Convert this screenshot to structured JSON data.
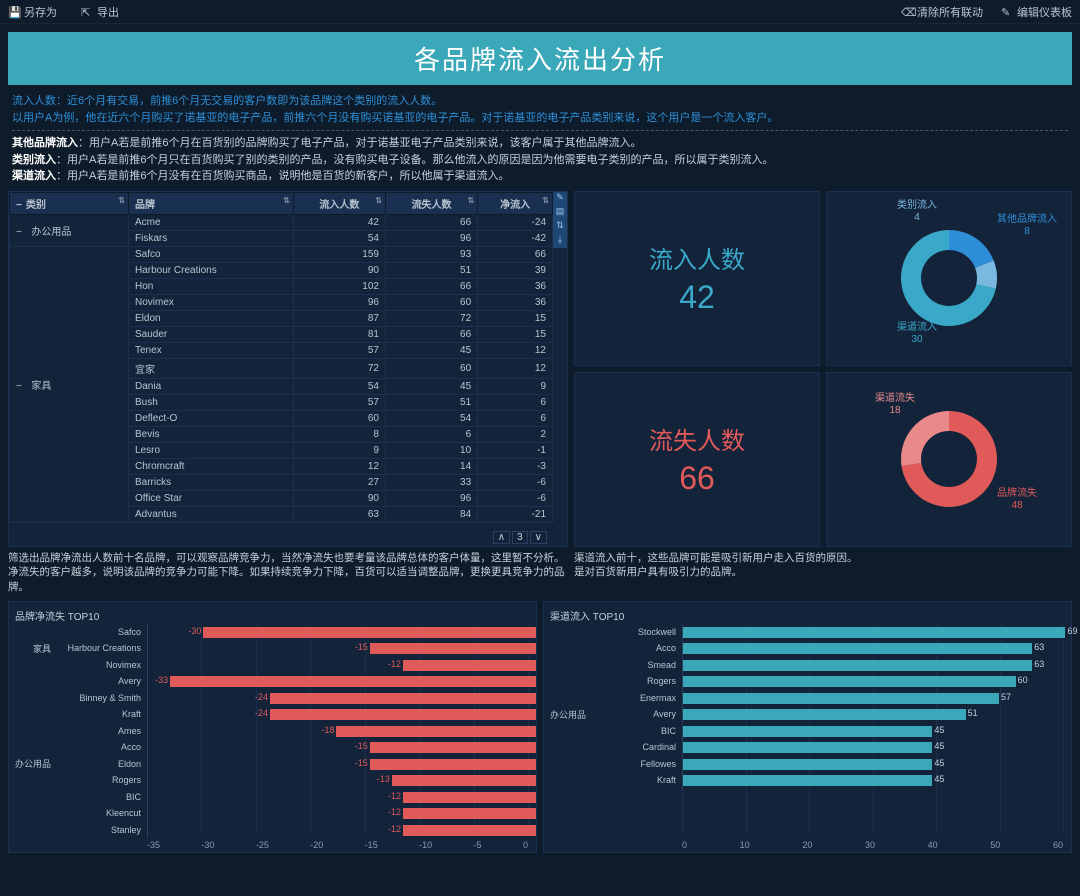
{
  "topbar": {
    "save_as": "另存为",
    "export": "导出",
    "clear_link": "清除所有联动",
    "edit_dash": "编辑仪表板"
  },
  "title": "各品牌流入流出分析",
  "desc": {
    "line1a": "流入人数：",
    "line1b": "近6个月有交易，前推6个月无交易的客户数即为该品牌这个类别的流入人数。",
    "line2": "以用户A为例，他在近六个月购买了诺基亚的电子产品，前推六个月没有购买诺基亚的电子产品。对于诺基亚的电子产品类别来说，这个用户是一个流入客户。",
    "line3a": "其他品牌流入",
    "line3b": "：用户A若是前推6个月在百货别的品牌购买了电子产品，对于诺基亚电子产品类别来说，该客户属于其他品牌流入。",
    "line4a": "类别流入",
    "line4b": "：用户A若是前推6个月只在百货购买了别的类别的产品，没有购买电子设备。那么他流入的原因是因为他需要电子类别的产品，所以属于类别流入。",
    "line5a": "渠道流入",
    "line5b": "：用户A若是前推6个月没有在百货购买商品，说明他是百货的新客户，所以他属于渠道流入。"
  },
  "table": {
    "cols": [
      "类别",
      "品牌",
      "流入人数",
      "流失人数",
      "净流入"
    ],
    "groups": [
      {
        "cat": "办公用品",
        "rows": [
          [
            "Acme",
            42,
            66,
            -24
          ],
          [
            "Fiskars",
            54,
            96,
            -42
          ]
        ]
      },
      {
        "cat": "家具",
        "rows": [
          [
            "Safco",
            159,
            93,
            66
          ],
          [
            "Harbour Creations",
            90,
            51,
            39
          ],
          [
            "Hon",
            102,
            66,
            36
          ],
          [
            "Novimex",
            96,
            60,
            36
          ],
          [
            "Eldon",
            87,
            72,
            15
          ],
          [
            "Sauder",
            81,
            66,
            15
          ],
          [
            "Tenex",
            57,
            45,
            12
          ],
          [
            "宜家",
            72,
            60,
            12
          ],
          [
            "Dania",
            54,
            45,
            9
          ],
          [
            "Bush",
            57,
            51,
            6
          ],
          [
            "Deflect-O",
            60,
            54,
            6
          ],
          [
            "Bevis",
            8,
            6,
            2
          ],
          [
            "Lesro",
            9,
            10,
            -1
          ],
          [
            "Chromcraft",
            12,
            14,
            -3
          ],
          [
            "Barricks",
            27,
            33,
            -6
          ],
          [
            "Office Star",
            90,
            96,
            -6
          ],
          [
            "Advantus",
            63,
            84,
            -21
          ]
        ]
      }
    ],
    "page": "3"
  },
  "stat_in": {
    "label": "流入人数",
    "val": "42"
  },
  "stat_out": {
    "label": "流失人数",
    "val": "66"
  },
  "donut_in": {
    "segments": [
      {
        "label": "其他品牌流入",
        "val": 8,
        "color": "#2e8fd8"
      },
      {
        "label": "类别流入",
        "val": 4,
        "color": "#7ab8e0"
      },
      {
        "label": "渠道流入",
        "val": 30,
        "color": "#3aa8c8"
      }
    ]
  },
  "donut_out": {
    "segments": [
      {
        "label": "品牌流失",
        "val": 48,
        "color": "#e05a5a"
      },
      {
        "label": "渠道流失",
        "val": 18,
        "color": "#e88a8a"
      }
    ]
  },
  "desc2_left": "筛选出品牌净流出人数前十名品牌，可以观察品牌竞争力，当然净流失也要考量该品牌总体的客户体量，这里暂不分析。\n净流失的客户越多，说明该品牌的竞争力可能下降。如果持续竞争力下降，百货可以适当调整品牌，更换更具竞争力的品牌。",
  "desc2_right": "渠道流入前十，这些品牌可能是吸引新用户走入百货的原因。\n是对百货新用户具有吸引力的品牌。",
  "chart_left": {
    "title": "品牌净流失 TOP10",
    "max": 35,
    "ticks": [
      "-35",
      "-30",
      "-25",
      "-20",
      "-15",
      "-10",
      "-5",
      "0"
    ],
    "groups": [
      {
        "cat": "家具",
        "rows": [
          [
            "Safco",
            30
          ],
          [
            "Harbour Creations",
            15
          ],
          [
            "Novimex",
            12
          ]
        ]
      },
      {
        "cat": "办公用品",
        "rows": [
          [
            "Avery",
            33
          ],
          [
            "Binney & Smith",
            24
          ],
          [
            "Kraft",
            24
          ],
          [
            "Ames",
            18
          ],
          [
            "Acco",
            15
          ],
          [
            "Eldon",
            15
          ],
          [
            "Rogers",
            13
          ],
          [
            "BIC",
            12
          ],
          [
            "Kleencut",
            12
          ],
          [
            "Stanley",
            12
          ]
        ]
      }
    ],
    "bar_color": "#e05a5a"
  },
  "chart_right": {
    "title": "渠道流入 TOP10",
    "max": 70,
    "ticks": [
      "0",
      "10",
      "20",
      "30",
      "40",
      "50",
      "60"
    ],
    "groups": [
      {
        "cat": "办公用品",
        "rows": [
          [
            "Stockwell",
            69
          ],
          [
            "Acco",
            63
          ],
          [
            "Smead",
            63
          ],
          [
            "Rogers",
            60
          ],
          [
            "Enermax",
            57
          ],
          [
            "Avery",
            51
          ],
          [
            "BIC",
            45
          ],
          [
            "Cardinal",
            45
          ],
          [
            "Fellowes",
            45
          ],
          [
            "Kraft",
            45
          ]
        ]
      }
    ],
    "bar_color": "#3aa8b8"
  }
}
